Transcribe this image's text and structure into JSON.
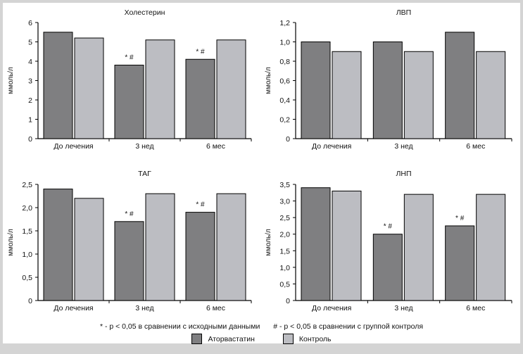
{
  "chart_data": [
    {
      "type": "bar",
      "title": "Холестерин",
      "ylabel": "ммоль/л",
      "ylim": [
        0,
        6
      ],
      "yticks": [
        "0",
        "1",
        "2",
        "3",
        "4",
        "5",
        "6"
      ],
      "categories": [
        "До лечения",
        "3 нед",
        "6 мес"
      ],
      "series": [
        {
          "name": "Аторвастатин",
          "values": [
            5.5,
            3.8,
            4.1
          ]
        },
        {
          "name": "Контроль",
          "values": [
            5.2,
            5.1,
            5.1
          ]
        }
      ],
      "annotations": [
        "",
        "* #",
        "* #"
      ]
    },
    {
      "type": "bar",
      "title": "ЛВП",
      "ylabel": "ммоль/л",
      "ylim": [
        0,
        1.2
      ],
      "yticks": [
        "0",
        "0,2",
        "0,4",
        "0,6",
        "0,8",
        "1,0",
        "1,2"
      ],
      "categories": [
        "До лечения",
        "3 нед",
        "6 мес"
      ],
      "series": [
        {
          "name": "Аторвастатин",
          "values": [
            1.0,
            1.0,
            1.1
          ]
        },
        {
          "name": "Контроль",
          "values": [
            0.9,
            0.9,
            0.9
          ]
        }
      ],
      "annotations": [
        "",
        "",
        ""
      ]
    },
    {
      "type": "bar",
      "title": "ТАГ",
      "ylabel": "ммоль/л",
      "ylim": [
        0,
        2.5
      ],
      "yticks": [
        "0",
        "0,5",
        "1,0",
        "1,5",
        "2,0",
        "2,5"
      ],
      "categories": [
        "До лечения",
        "3 нед",
        "6 мес"
      ],
      "series": [
        {
          "name": "Аторвастатин",
          "values": [
            2.4,
            1.7,
            1.9
          ]
        },
        {
          "name": "Контроль",
          "values": [
            2.2,
            2.3,
            2.3
          ]
        }
      ],
      "annotations": [
        "",
        "* #",
        "* #"
      ]
    },
    {
      "type": "bar",
      "title": "ЛНП",
      "ylabel": "ммоль/л",
      "ylim": [
        0,
        3.5
      ],
      "yticks": [
        "0",
        "0,5",
        "1,0",
        "1,5",
        "2,0",
        "2,5",
        "3,0",
        "3,5"
      ],
      "categories": [
        "До лечения",
        "3 нед",
        "6 мес"
      ],
      "series": [
        {
          "name": "Аторвастатин",
          "values": [
            3.4,
            2.0,
            2.25
          ]
        },
        {
          "name": "Контроль",
          "values": [
            3.3,
            3.2,
            3.2
          ]
        }
      ],
      "annotations": [
        "",
        "* #",
        "* #"
      ]
    }
  ],
  "notes": {
    "star": "* - p < 0,05 в сравнении с исходными данными",
    "hash": "# - p < 0,05 в сравнении с группой контроля"
  },
  "legend": [
    {
      "label": "Аторвастатин",
      "color": "#7f7f81"
    },
    {
      "label": "Контроль",
      "color": "#bcbdc2"
    }
  ]
}
